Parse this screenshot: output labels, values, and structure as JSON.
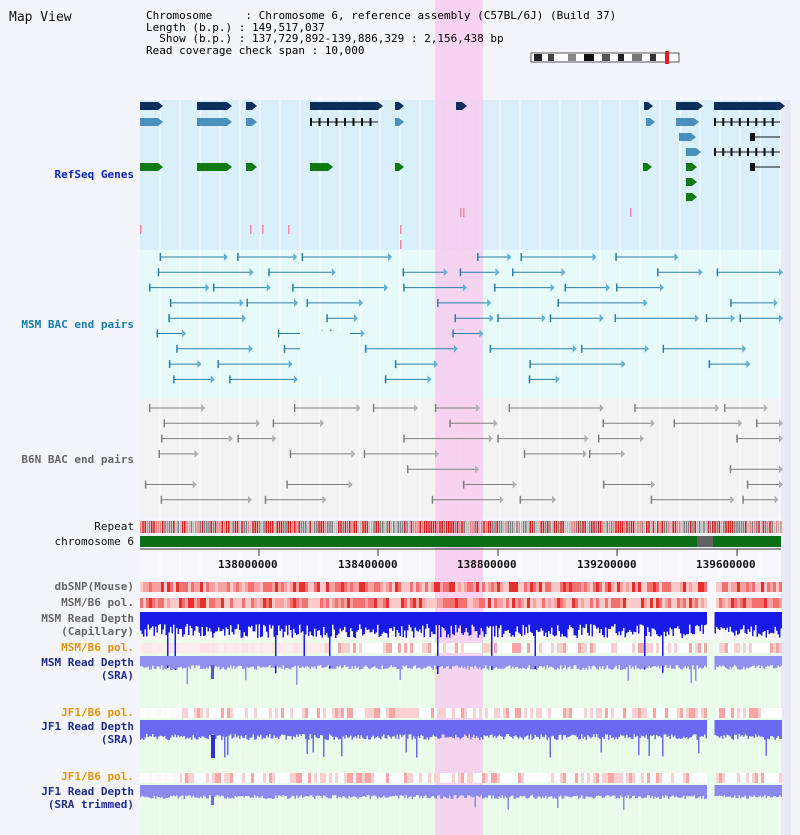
{
  "page": {
    "title": "Map View"
  },
  "info": {
    "line1": "Chromosome     : Chromosome 6, reference assembly (C57BL/6J) (Build 37)",
    "line2": "Length (b.p.) : 149,517,037",
    "line3": "  Show (b.p.) : 137,729,892-139,886,329 : 2,156,438 bp",
    "line4": "Read coverage check span : 10,000"
  },
  "tracks": {
    "refseq": "RefSeq Genes",
    "msm_bac": "MSM BAC end pairs",
    "b6n_bac": "B6N BAC end pairs",
    "repeat": "Repeat",
    "chromosome": "chromosome 6",
    "dbsnp": "dbSNP(Mouse)",
    "msm_b6_pol": "MSM/B6 pol.",
    "msm_depth_cap": "MSM Read Depth\n(Capillary)",
    "msm_b6_pol_sra": "MSM/B6 pol.",
    "msm_depth_sra": "MSM Read Depth\n(SRA)",
    "jf1_b6_pol": "JF1/B6 pol.",
    "jf1_depth_sra": "JF1 Read Depth\n(SRA)",
    "jf1_b6_pol_trim": "JF1/B6 pol.",
    "jf1_depth_trim": "JF1 Read Depth\n(SRA trimmed)"
  },
  "axis": {
    "ticks": [
      "138000000",
      "138400000",
      "138800000",
      "139200000",
      "139600000"
    ]
  },
  "colors": {
    "highlight": "#f7cdee",
    "refseq_bg": "#d9effa",
    "bac_bg": "#e6fafa",
    "gene_navy": "#0e2f5e",
    "gene_blue": "#4a90bd",
    "gene_green": "#0d7a12",
    "bac_teal": "#2d7fa6",
    "bac_gray": "#808080",
    "chromosome_green": "#0b6e16"
  }
}
